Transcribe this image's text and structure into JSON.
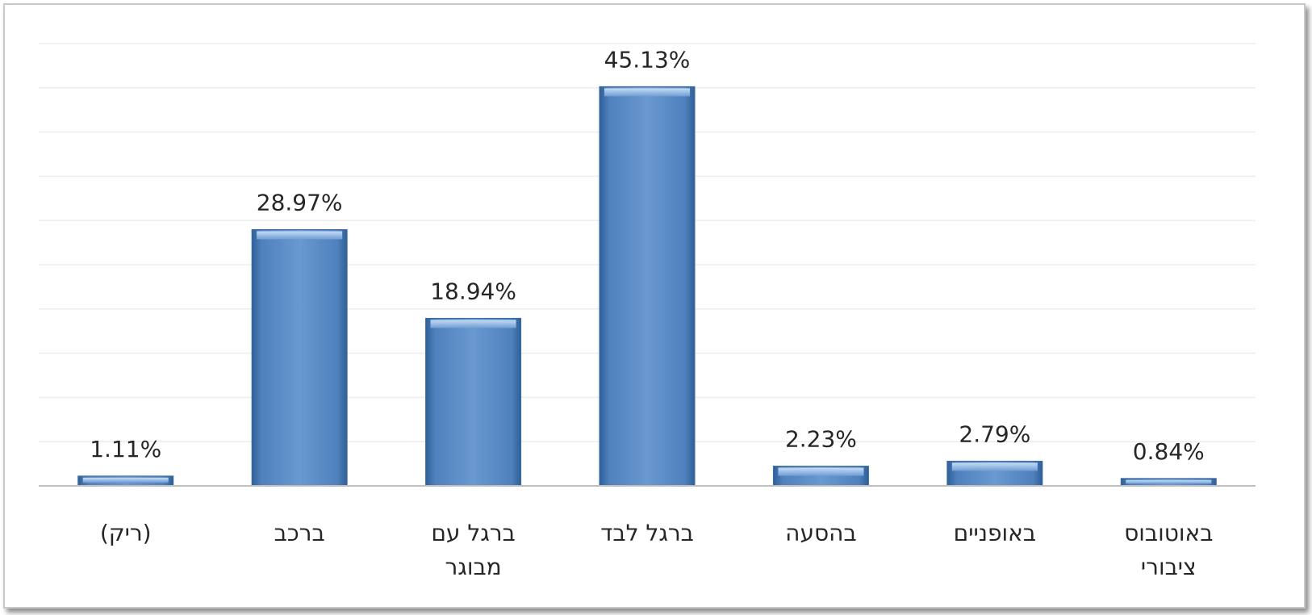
{
  "chart_data": {
    "type": "bar",
    "categories": [
      [
        "(ריק)"
      ],
      [
        "ברכב"
      ],
      [
        "ברגל עם",
        "מבוגר"
      ],
      [
        "ברגל לבד"
      ],
      [
        "בהסעה"
      ],
      [
        "באופניים"
      ],
      [
        "באוטובוס",
        "ציבורי"
      ]
    ],
    "values": [
      1.11,
      28.97,
      18.94,
      45.13,
      2.23,
      2.79,
      0.84
    ],
    "data_labels": [
      "1.11%",
      "28.97%",
      "18.94%",
      "45.13%",
      "2.23%",
      "2.79%",
      "0.84%"
    ],
    "ylim": [
      0,
      50
    ],
    "gridlines": true,
    "bar_color": "#4f81bd",
    "title": "",
    "xlabel": "",
    "ylabel": ""
  }
}
